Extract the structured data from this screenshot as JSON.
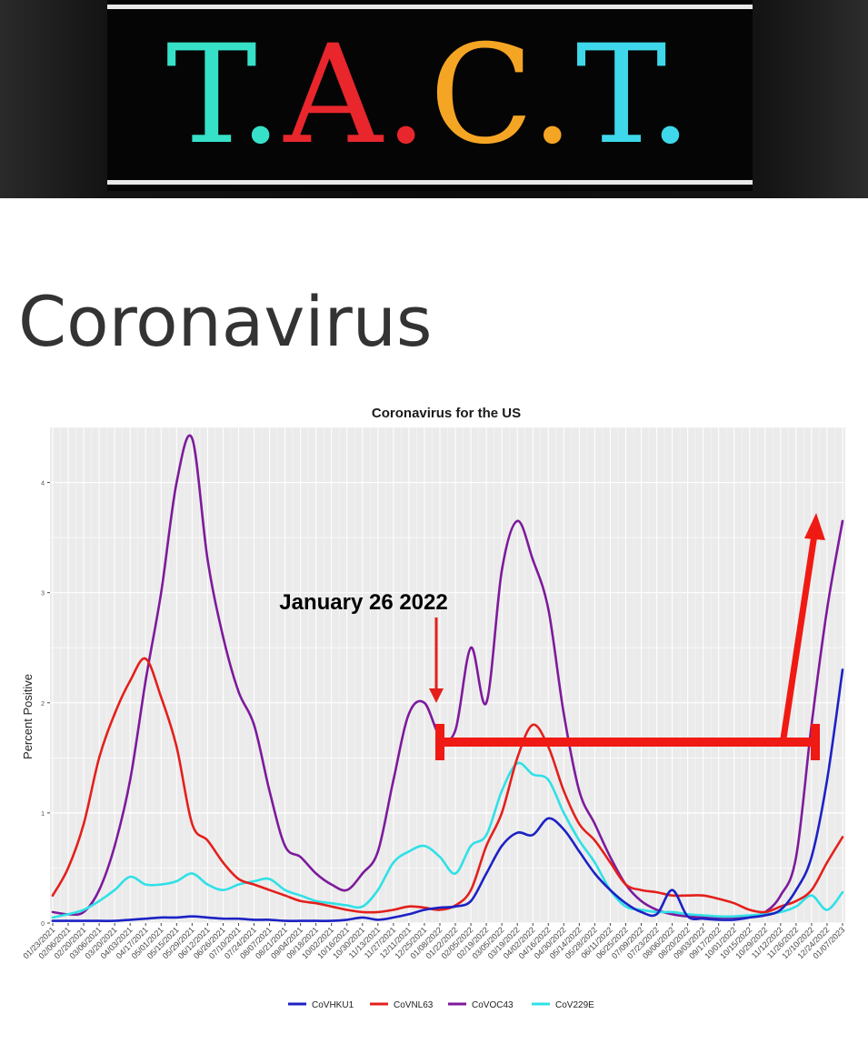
{
  "header": {
    "logo_parts": [
      {
        "text": "T.",
        "color": "#36e1c8"
      },
      {
        "text": "A.",
        "color": "#e8262c"
      },
      {
        "text": "C.",
        "color": "#f5a524"
      },
      {
        "text": "T.",
        "color": "#3ed8ea"
      }
    ]
  },
  "page": {
    "title": "Coronavirus"
  },
  "chart_data": {
    "type": "line",
    "title": "Coronavirus for the US",
    "xlabel": "",
    "ylabel": "Percent Positive",
    "ylim": [
      0,
      4.5
    ],
    "yticks": [
      0,
      1,
      2,
      3,
      4
    ],
    "grid": true,
    "legend_position": "bottom",
    "categories": [
      "01/23/2021",
      "02/06/2021",
      "02/20/2021",
      "03/06/2021",
      "03/20/2021",
      "04/03/2021",
      "04/17/2021",
      "05/01/2021",
      "05/15/2021",
      "05/29/2021",
      "06/12/2021",
      "06/26/2021",
      "07/10/2021",
      "07/24/2021",
      "08/07/2021",
      "08/21/2021",
      "09/04/2021",
      "09/18/2021",
      "10/02/2021",
      "10/16/2021",
      "10/30/2021",
      "11/13/2021",
      "11/27/2021",
      "12/11/2021",
      "12/25/2021",
      "01/08/2022",
      "01/22/2022",
      "02/05/2022",
      "02/19/2022",
      "03/05/2022",
      "03/19/2022",
      "04/02/2022",
      "04/16/2022",
      "04/30/2022",
      "05/14/2022",
      "05/28/2022",
      "06/11/2022",
      "06/25/2022",
      "07/09/2022",
      "07/23/2022",
      "08/06/2022",
      "08/20/2022",
      "09/03/2022",
      "09/17/2022",
      "10/01/2022",
      "10/15/2022",
      "10/29/2022",
      "11/12/2022",
      "11/26/2022",
      "12/10/2022",
      "12/24/2022",
      "01/07/2023"
    ],
    "series": [
      {
        "name": "CoVHKU1",
        "color": "#1c22c4",
        "values": [
          0.02,
          0.02,
          0.02,
          0.02,
          0.02,
          0.03,
          0.04,
          0.05,
          0.05,
          0.06,
          0.05,
          0.04,
          0.04,
          0.03,
          0.03,
          0.02,
          0.02,
          0.02,
          0.02,
          0.03,
          0.05,
          0.03,
          0.05,
          0.08,
          0.12,
          0.14,
          0.15,
          0.2,
          0.45,
          0.7,
          0.82,
          0.8,
          0.95,
          0.85,
          0.65,
          0.45,
          0.3,
          0.18,
          0.1,
          0.08,
          0.3,
          0.06,
          0.04,
          0.03,
          0.03,
          0.05,
          0.07,
          0.12,
          0.3,
          0.6,
          1.3,
          2.3
        ]
      },
      {
        "name": "CoVNL63",
        "color": "#e3201c",
        "values": [
          0.25,
          0.5,
          0.9,
          1.5,
          1.9,
          2.2,
          2.4,
          2.05,
          1.6,
          0.9,
          0.75,
          0.55,
          0.4,
          0.35,
          0.3,
          0.25,
          0.2,
          0.18,
          0.15,
          0.12,
          0.1,
          0.1,
          0.12,
          0.15,
          0.14,
          0.12,
          0.16,
          0.3,
          0.7,
          1.0,
          1.5,
          1.8,
          1.6,
          1.2,
          0.9,
          0.75,
          0.55,
          0.35,
          0.3,
          0.28,
          0.25,
          0.25,
          0.25,
          0.22,
          0.18,
          0.12,
          0.1,
          0.15,
          0.2,
          0.3,
          0.55,
          0.78
        ]
      },
      {
        "name": "CoVOC43",
        "color": "#7d1a9c",
        "values": [
          0.1,
          0.08,
          0.1,
          0.3,
          0.7,
          1.3,
          2.2,
          3.0,
          4.0,
          4.4,
          3.3,
          2.6,
          2.1,
          1.8,
          1.2,
          0.7,
          0.6,
          0.45,
          0.35,
          0.3,
          0.45,
          0.65,
          1.3,
          1.9,
          2.0,
          1.7,
          1.75,
          2.5,
          2.0,
          3.2,
          3.65,
          3.3,
          2.85,
          1.9,
          1.2,
          0.9,
          0.6,
          0.35,
          0.2,
          0.12,
          0.08,
          0.06,
          0.05,
          0.05,
          0.05,
          0.06,
          0.1,
          0.25,
          0.6,
          1.8,
          2.85,
          3.65
        ]
      },
      {
        "name": "CoV229E",
        "color": "#30e0e6",
        "values": [
          0.05,
          0.08,
          0.12,
          0.2,
          0.3,
          0.42,
          0.35,
          0.35,
          0.38,
          0.45,
          0.35,
          0.3,
          0.35,
          0.38,
          0.4,
          0.3,
          0.25,
          0.2,
          0.18,
          0.16,
          0.15,
          0.3,
          0.55,
          0.65,
          0.7,
          0.6,
          0.45,
          0.7,
          0.8,
          1.2,
          1.45,
          1.35,
          1.3,
          1.0,
          0.75,
          0.55,
          0.3,
          0.15,
          0.12,
          0.1,
          0.1,
          0.08,
          0.07,
          0.06,
          0.06,
          0.07,
          0.08,
          0.1,
          0.15,
          0.25,
          0.12,
          0.28
        ]
      }
    ],
    "annotations": [
      {
        "text": "January 26 2022"
      }
    ]
  }
}
